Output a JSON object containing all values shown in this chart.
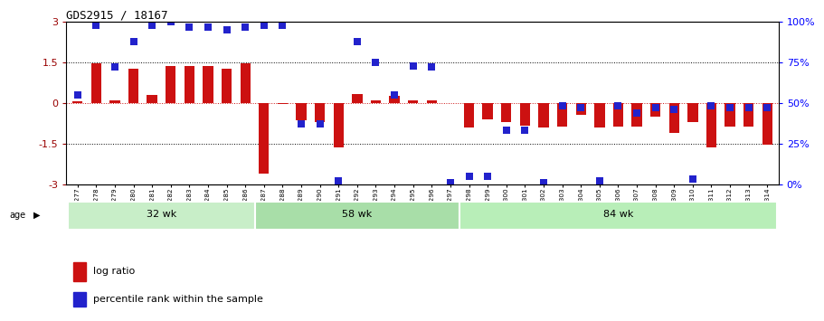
{
  "title": "GDS2915 / 18167",
  "samples": [
    "GSM97277",
    "GSM97278",
    "GSM97279",
    "GSM97280",
    "GSM97281",
    "GSM97282",
    "GSM97283",
    "GSM97284",
    "GSM97285",
    "GSM97286",
    "GSM97287",
    "GSM97288",
    "GSM97289",
    "GSM97290",
    "GSM97291",
    "GSM97292",
    "GSM97293",
    "GSM97294",
    "GSM97295",
    "GSM97296",
    "GSM97297",
    "GSM97298",
    "GSM97299",
    "GSM97300",
    "GSM97301",
    "GSM97302",
    "GSM97303",
    "GSM97304",
    "GSM97305",
    "GSM97306",
    "GSM97307",
    "GSM97308",
    "GSM97309",
    "GSM97310",
    "GSM97311",
    "GSM97312",
    "GSM97313",
    "GSM97314"
  ],
  "log_ratio": [
    0.05,
    1.45,
    0.08,
    1.28,
    0.28,
    1.38,
    1.35,
    1.38,
    1.28,
    1.45,
    -2.6,
    -0.05,
    -0.65,
    -0.72,
    -1.65,
    0.32,
    0.1,
    0.25,
    0.1,
    0.08,
    -0.02,
    -0.9,
    -0.6,
    -0.7,
    -0.85,
    -0.9,
    -0.88,
    -0.45,
    -0.9,
    -0.88,
    -0.88,
    -0.5,
    -1.1,
    -0.7,
    -1.65,
    -0.88,
    -0.88,
    -1.55
  ],
  "percentile_pct": [
    55,
    98,
    72,
    88,
    98,
    100,
    97,
    97,
    95,
    97,
    98,
    98,
    37,
    37,
    2,
    88,
    75,
    55,
    73,
    72,
    1,
    5,
    5,
    33,
    33,
    1,
    48,
    47,
    2,
    48,
    44,
    47,
    46,
    3,
    48,
    47,
    47,
    47
  ],
  "groups": [
    {
      "label": "32 wk",
      "start": 0,
      "end": 10
    },
    {
      "label": "58 wk",
      "start": 10,
      "end": 21
    },
    {
      "label": "84 wk",
      "start": 21,
      "end": 38
    }
  ],
  "bar_color": "#CC1111",
  "dot_color": "#2222CC",
  "ylim": [
    -3,
    3
  ],
  "yticks": [
    -3,
    -1.5,
    0,
    1.5,
    3
  ],
  "y2ticks_pct": [
    0,
    25,
    50,
    75,
    100
  ],
  "dotted_lines": [
    1.5,
    -1.5
  ],
  "bg_color": "#ffffff",
  "group_colors": [
    "#b8ebb8",
    "#99dd99",
    "#aaeeaa"
  ]
}
